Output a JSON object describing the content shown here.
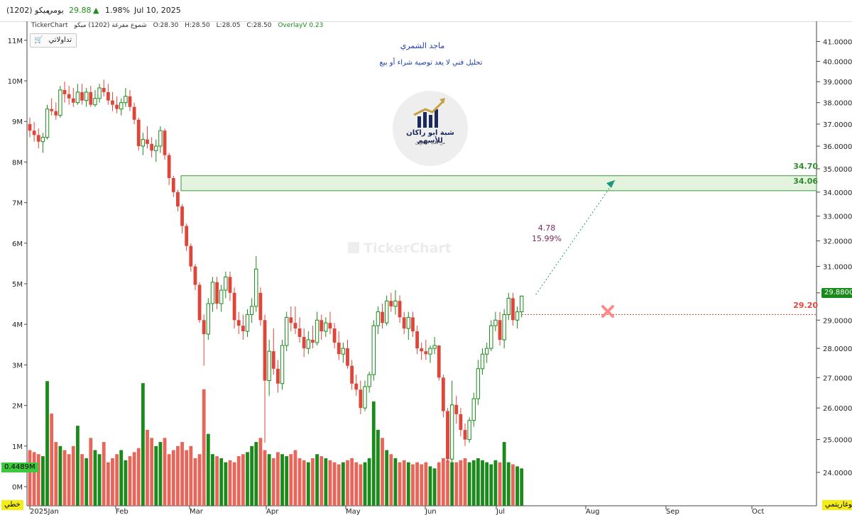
{
  "header": {
    "symbol": "ميكو (1202)",
    "period": "يومي",
    "price": "29.88",
    "change_pct": "1.98%",
    "date": "Jul 10, 2025",
    "up_color": "#1e8c1e"
  },
  "infobar": {
    "brand": "TickerChart",
    "series_name": "شموع مفرغة (1202) ميكو",
    "open": "O:28.30",
    "high": "H:28.50",
    "low": "L:28.05",
    "close": "C:28.50",
    "overlay": "OverlayV 0.23"
  },
  "trade_button": {
    "label": "تداولاتي",
    "icon": "cart-icon"
  },
  "annotations": {
    "author": "ماجد الشمري",
    "disclaimer": "تحليل فني لا يعد توصية شراء أو بيع",
    "logo_text": "شبة ابو راكان للأسهم",
    "logo_subtext": "من قلب الأسواق",
    "watermark": "TickerChart",
    "projection_value": "4.78",
    "projection_pct": "15.99%"
  },
  "tags": {
    "last_price": "29.8800",
    "stop_level": "29.20",
    "zone_top": "34.70",
    "zone_bottom": "34.06",
    "volume_value": "0.4489M",
    "left_scale_mode": "خطي",
    "right_scale_mode": "لوغاريتمي"
  },
  "colors": {
    "bull": "#1a8a1a",
    "bear": "#e0453a",
    "bear_volume": "#e8655a",
    "zone_fill": "#e3f3de",
    "zone_border": "#3a9a3a",
    "stop_line": "#e0453a",
    "projection": "#1a9a7a",
    "tag_yellow": "#f5ee16"
  },
  "chart_data": {
    "type": "candlestick",
    "title": "",
    "price_axis": {
      "side": "right",
      "scale": "log",
      "range": [
        23.6,
        41.6
      ],
      "ticks": [
        "41.0000",
        "40.0000",
        "39.0000",
        "38.0000",
        "37.0000",
        "36.0000",
        "35.0000",
        "34.0000",
        "33.0000",
        "32.0000",
        "31.0000",
        "30.0000",
        "29.0000",
        "28.0000",
        "27.0000",
        "26.0000",
        "25.0000",
        "24.0000"
      ]
    },
    "volume_axis": {
      "side": "left",
      "ticks": [
        "11M",
        "10M",
        "9M",
        "8M",
        "7M",
        "6M",
        "5M",
        "4M",
        "3M",
        "2M",
        "1M",
        "0M"
      ]
    },
    "time_axis": {
      "labels": [
        "2025Jan",
        "Feb",
        "Mar",
        "Apr",
        "May",
        "Jun",
        "Jul",
        "Aug",
        "Sep",
        "Oct"
      ]
    },
    "candles": [
      {
        "o": 37.0,
        "h": 37.3,
        "l": 36.4,
        "c": 36.7
      },
      {
        "o": 36.7,
        "h": 37.1,
        "l": 36.2,
        "c": 36.5
      },
      {
        "o": 36.5,
        "h": 36.8,
        "l": 35.9,
        "c": 36.2
      },
      {
        "o": 36.2,
        "h": 36.6,
        "l": 35.7,
        "c": 36.4
      },
      {
        "o": 36.4,
        "h": 37.9,
        "l": 36.3,
        "c": 37.7
      },
      {
        "o": 37.7,
        "h": 38.2,
        "l": 37.4,
        "c": 37.6
      },
      {
        "o": 37.6,
        "h": 38.0,
        "l": 37.2,
        "c": 37.4
      },
      {
        "o": 37.4,
        "h": 38.8,
        "l": 37.3,
        "c": 38.6
      },
      {
        "o": 38.6,
        "h": 39.0,
        "l": 38.0,
        "c": 38.4
      },
      {
        "o": 38.4,
        "h": 38.8,
        "l": 37.9,
        "c": 38.2
      },
      {
        "o": 38.2,
        "h": 38.7,
        "l": 37.8,
        "c": 38.0
      },
      {
        "o": 38.0,
        "h": 38.9,
        "l": 37.9,
        "c": 38.5
      },
      {
        "o": 38.5,
        "h": 38.9,
        "l": 37.9,
        "c": 38.1
      },
      {
        "o": 38.1,
        "h": 38.7,
        "l": 37.8,
        "c": 38.5
      },
      {
        "o": 38.5,
        "h": 38.8,
        "l": 37.8,
        "c": 37.9
      },
      {
        "o": 37.9,
        "h": 38.6,
        "l": 37.8,
        "c": 38.2
      },
      {
        "o": 38.2,
        "h": 38.9,
        "l": 38.0,
        "c": 38.7
      },
      {
        "o": 38.7,
        "h": 39.1,
        "l": 38.3,
        "c": 38.5
      },
      {
        "o": 38.5,
        "h": 38.9,
        "l": 37.9,
        "c": 38.1
      },
      {
        "o": 38.1,
        "h": 38.5,
        "l": 37.6,
        "c": 37.9
      },
      {
        "o": 37.9,
        "h": 38.3,
        "l": 37.5,
        "c": 37.7
      },
      {
        "o": 37.7,
        "h": 38.2,
        "l": 37.4,
        "c": 38.0
      },
      {
        "o": 38.0,
        "h": 38.7,
        "l": 37.8,
        "c": 38.3
      },
      {
        "o": 38.3,
        "h": 38.6,
        "l": 37.6,
        "c": 37.8
      },
      {
        "o": 37.8,
        "h": 38.0,
        "l": 37.0,
        "c": 37.2
      },
      {
        "o": 37.2,
        "h": 37.3,
        "l": 35.8,
        "c": 36.0
      },
      {
        "o": 36.0,
        "h": 36.6,
        "l": 35.6,
        "c": 36.3
      },
      {
        "o": 36.3,
        "h": 36.9,
        "l": 35.9,
        "c": 36.1
      },
      {
        "o": 36.1,
        "h": 36.4,
        "l": 35.5,
        "c": 35.8
      },
      {
        "o": 35.8,
        "h": 36.3,
        "l": 35.3,
        "c": 36.0
      },
      {
        "o": 36.0,
        "h": 36.9,
        "l": 35.7,
        "c": 36.7
      },
      {
        "o": 36.7,
        "h": 36.8,
        "l": 35.4,
        "c": 35.6
      },
      {
        "o": 35.6,
        "h": 35.7,
        "l": 34.3,
        "c": 34.6
      },
      {
        "o": 34.6,
        "h": 34.7,
        "l": 33.8,
        "c": 34.0
      },
      {
        "o": 34.0,
        "h": 34.1,
        "l": 33.2,
        "c": 33.4
      },
      {
        "o": 33.4,
        "h": 33.5,
        "l": 32.3,
        "c": 32.6
      },
      {
        "o": 32.6,
        "h": 32.7,
        "l": 31.6,
        "c": 31.8
      },
      {
        "o": 31.8,
        "h": 31.9,
        "l": 30.8,
        "c": 31.0
      },
      {
        "o": 31.0,
        "h": 31.1,
        "l": 30.1,
        "c": 30.3
      },
      {
        "o": 30.3,
        "h": 30.4,
        "l": 28.9,
        "c": 29.0
      },
      {
        "o": 29.0,
        "h": 29.2,
        "l": 27.4,
        "c": 28.5
      },
      {
        "o": 28.5,
        "h": 29.8,
        "l": 28.3,
        "c": 29.6
      },
      {
        "o": 29.6,
        "h": 30.6,
        "l": 29.3,
        "c": 30.4
      },
      {
        "o": 30.4,
        "h": 30.6,
        "l": 29.4,
        "c": 29.6
      },
      {
        "o": 29.6,
        "h": 30.3,
        "l": 29.3,
        "c": 30.1
      },
      {
        "o": 30.1,
        "h": 30.8,
        "l": 29.8,
        "c": 30.6
      },
      {
        "o": 30.6,
        "h": 30.8,
        "l": 29.7,
        "c": 30.0
      },
      {
        "o": 30.0,
        "h": 30.2,
        "l": 28.7,
        "c": 29.0
      },
      {
        "o": 29.0,
        "h": 29.3,
        "l": 28.5,
        "c": 28.8
      },
      {
        "o": 28.8,
        "h": 29.2,
        "l": 28.3,
        "c": 28.6
      },
      {
        "o": 28.6,
        "h": 29.4,
        "l": 28.4,
        "c": 29.2
      },
      {
        "o": 29.2,
        "h": 29.8,
        "l": 28.9,
        "c": 29.5
      },
      {
        "o": 29.5,
        "h": 31.4,
        "l": 29.3,
        "c": 30.9
      },
      {
        "o": 30.0,
        "h": 30.2,
        "l": 28.8,
        "c": 29.0
      },
      {
        "o": 29.0,
        "h": 29.2,
        "l": 24.9,
        "c": 26.9
      },
      {
        "o": 26.9,
        "h": 28.3,
        "l": 26.4,
        "c": 27.9
      },
      {
        "o": 27.9,
        "h": 28.7,
        "l": 27.1,
        "c": 27.3
      },
      {
        "o": 27.3,
        "h": 27.6,
        "l": 26.5,
        "c": 26.8
      },
      {
        "o": 26.8,
        "h": 28.3,
        "l": 26.6,
        "c": 28.1
      },
      {
        "o": 28.1,
        "h": 29.3,
        "l": 27.9,
        "c": 29.1
      },
      {
        "o": 29.1,
        "h": 29.5,
        "l": 28.6,
        "c": 28.9
      },
      {
        "o": 28.9,
        "h": 29.5,
        "l": 28.5,
        "c": 28.7
      },
      {
        "o": 28.7,
        "h": 29.1,
        "l": 28.2,
        "c": 28.4
      },
      {
        "o": 28.4,
        "h": 28.7,
        "l": 27.7,
        "c": 28.0
      },
      {
        "o": 28.0,
        "h": 28.6,
        "l": 27.8,
        "c": 28.3
      },
      {
        "o": 28.3,
        "h": 28.8,
        "l": 28.0,
        "c": 28.2
      },
      {
        "o": 28.2,
        "h": 29.3,
        "l": 28.1,
        "c": 29.0
      },
      {
        "o": 29.0,
        "h": 29.2,
        "l": 28.3,
        "c": 28.6
      },
      {
        "o": 28.6,
        "h": 29.1,
        "l": 28.4,
        "c": 28.9
      },
      {
        "o": 28.9,
        "h": 29.3,
        "l": 28.5,
        "c": 28.7
      },
      {
        "o": 28.7,
        "h": 28.9,
        "l": 28.0,
        "c": 28.2
      },
      {
        "o": 28.2,
        "h": 28.6,
        "l": 27.6,
        "c": 27.8
      },
      {
        "o": 27.8,
        "h": 28.2,
        "l": 27.5,
        "c": 28.0
      },
      {
        "o": 28.0,
        "h": 28.3,
        "l": 27.3,
        "c": 27.4
      },
      {
        "o": 27.4,
        "h": 27.6,
        "l": 26.6,
        "c": 26.8
      },
      {
        "o": 26.8,
        "h": 27.1,
        "l": 26.4,
        "c": 26.6
      },
      {
        "o": 26.6,
        "h": 26.9,
        "l": 25.8,
        "c": 26.0
      },
      {
        "o": 26.0,
        "h": 26.9,
        "l": 25.9,
        "c": 26.7
      },
      {
        "o": 26.7,
        "h": 27.2,
        "l": 26.5,
        "c": 27.1
      },
      {
        "o": 27.1,
        "h": 29.0,
        "l": 26.9,
        "c": 28.8
      },
      {
        "o": 28.8,
        "h": 29.5,
        "l": 28.5,
        "c": 29.3
      },
      {
        "o": 29.3,
        "h": 29.6,
        "l": 28.7,
        "c": 28.9
      },
      {
        "o": 28.9,
        "h": 29.9,
        "l": 28.8,
        "c": 29.7
      },
      {
        "o": 29.7,
        "h": 30.0,
        "l": 29.3,
        "c": 29.5
      },
      {
        "o": 29.5,
        "h": 30.1,
        "l": 29.2,
        "c": 29.7
      },
      {
        "o": 29.7,
        "h": 29.9,
        "l": 28.9,
        "c": 29.1
      },
      {
        "o": 29.1,
        "h": 29.3,
        "l": 28.5,
        "c": 28.7
      },
      {
        "o": 28.7,
        "h": 29.3,
        "l": 28.3,
        "c": 29.1
      },
      {
        "o": 29.1,
        "h": 29.3,
        "l": 28.4,
        "c": 28.6
      },
      {
        "o": 28.6,
        "h": 28.8,
        "l": 27.8,
        "c": 28.0
      },
      {
        "o": 28.0,
        "h": 28.2,
        "l": 27.6,
        "c": 27.9
      },
      {
        "o": 27.9,
        "h": 28.3,
        "l": 27.6,
        "c": 27.8
      },
      {
        "o": 27.8,
        "h": 28.1,
        "l": 27.5,
        "c": 28.0
      },
      {
        "o": 28.0,
        "h": 28.4,
        "l": 27.8,
        "c": 28.1
      },
      {
        "o": 28.1,
        "h": 28.1,
        "l": 26.9,
        "c": 27.0
      },
      {
        "o": 27.0,
        "h": 27.1,
        "l": 25.7,
        "c": 25.9
      },
      {
        "o": 25.9,
        "h": 26.0,
        "l": 24.3,
        "c": 24.4
      },
      {
        "o": 24.4,
        "h": 26.9,
        "l": 24.3,
        "c": 26.1
      },
      {
        "o": 26.1,
        "h": 26.4,
        "l": 25.5,
        "c": 25.8
      },
      {
        "o": 25.8,
        "h": 26.0,
        "l": 25.1,
        "c": 25.3
      },
      {
        "o": 25.3,
        "h": 25.5,
        "l": 24.8,
        "c": 25.0
      },
      {
        "o": 25.0,
        "h": 25.7,
        "l": 24.9,
        "c": 25.6
      },
      {
        "o": 25.6,
        "h": 26.5,
        "l": 25.4,
        "c": 26.3
      },
      {
        "o": 26.3,
        "h": 27.6,
        "l": 26.1,
        "c": 27.3
      },
      {
        "o": 27.3,
        "h": 28.0,
        "l": 27.1,
        "c": 27.8
      },
      {
        "o": 27.8,
        "h": 28.2,
        "l": 27.5,
        "c": 28.0
      },
      {
        "o": 28.0,
        "h": 29.0,
        "l": 27.9,
        "c": 28.8
      },
      {
        "o": 28.8,
        "h": 29.3,
        "l": 28.6,
        "c": 29.0
      },
      {
        "o": 29.0,
        "h": 29.3,
        "l": 28.1,
        "c": 28.3
      },
      {
        "o": 28.3,
        "h": 29.4,
        "l": 28.0,
        "c": 29.2
      },
      {
        "o": 29.2,
        "h": 30.0,
        "l": 29.0,
        "c": 29.8
      },
      {
        "o": 29.8,
        "h": 30.0,
        "l": 28.8,
        "c": 29.0
      },
      {
        "o": 29.0,
        "h": 29.5,
        "l": 28.7,
        "c": 29.3
      },
      {
        "o": 29.3,
        "h": 29.9,
        "l": 29.1,
        "c": 29.88
      }
    ],
    "volume_m": [
      0.9,
      0.85,
      0.8,
      0.75,
      2.6,
      1.8,
      1.1,
      1.0,
      0.9,
      0.8,
      1.0,
      1.5,
      0.8,
      0.7,
      1.2,
      0.9,
      0.8,
      1.1,
      0.6,
      0.7,
      0.8,
      0.9,
      0.65,
      0.75,
      0.85,
      0.95,
      2.55,
      1.4,
      1.2,
      1.0,
      1.1,
      1.2,
      0.8,
      0.9,
      1.0,
      1.1,
      0.9,
      1.0,
      0.7,
      0.8,
      2.4,
      1.3,
      0.8,
      0.75,
      0.7,
      0.6,
      0.65,
      0.6,
      0.75,
      0.8,
      0.85,
      1.0,
      1.1,
      1.2,
      0.9,
      0.8,
      0.7,
      0.85,
      0.8,
      0.75,
      0.8,
      0.9,
      0.7,
      0.65,
      0.6,
      0.7,
      0.8,
      0.75,
      0.7,
      0.65,
      0.6,
      0.55,
      0.6,
      0.65,
      0.7,
      0.6,
      0.55,
      0.6,
      0.7,
      2.1,
      1.4,
      1.2,
      0.9,
      0.8,
      0.7,
      0.6,
      0.65,
      0.6,
      0.55,
      0.6,
      0.55,
      0.6,
      0.5,
      0.45,
      0.6,
      0.7,
      0.65,
      0.6,
      0.6,
      0.65,
      0.7,
      0.6,
      0.65,
      0.7,
      0.65,
      0.6,
      0.55,
      0.65,
      0.6,
      1.1,
      0.6,
      0.55,
      0.5,
      0.4489
    ],
    "zone": [
      34.06,
      34.7
    ],
    "stop_level": 29.2,
    "projection_target": 34.66
  }
}
